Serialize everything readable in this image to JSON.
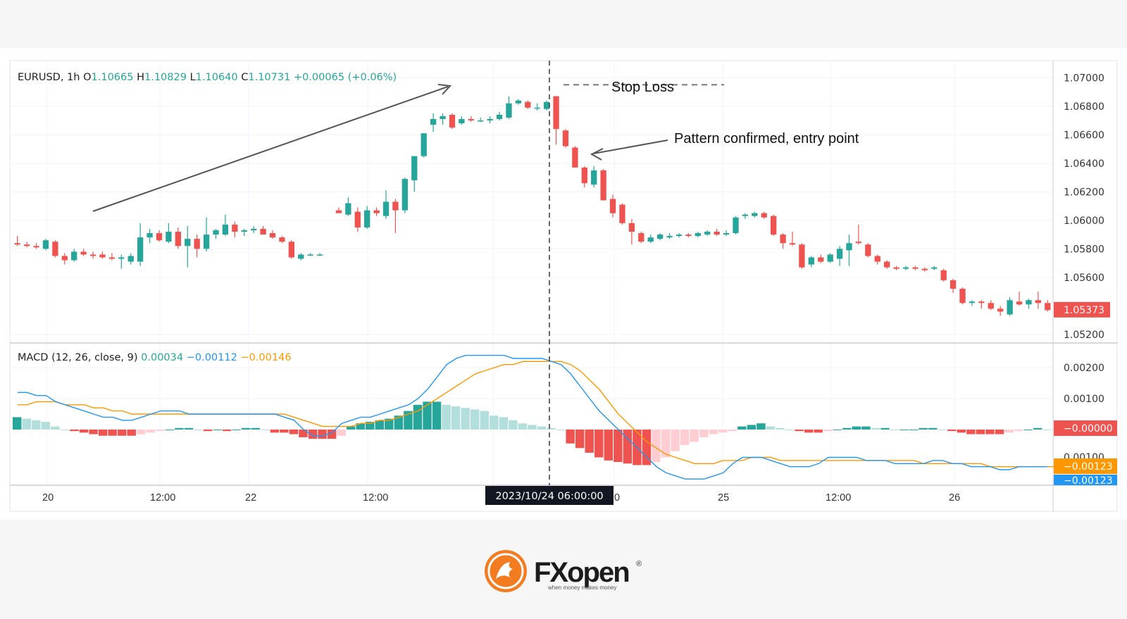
{
  "chart_data": {
    "type": "candlestick",
    "symbol": "EURUSD",
    "interval": "1h",
    "ohlc_header": {
      "open_label": "O",
      "open": "1.10665",
      "high_label": "H",
      "high": "1.10829",
      "low_label": "L",
      "low": "1.10640",
      "close_label": "C",
      "close": "1.10731",
      "change": "+0.00065 (+0.06%)"
    },
    "price_axis": {
      "ticks": [
        "1.07000",
        "1.06800",
        "1.06600",
        "1.06400",
        "1.06200",
        "1.06000",
        "1.05800",
        "1.05600",
        "1.05200"
      ],
      "tick_values": [
        1.07,
        1.068,
        1.066,
        1.064,
        1.062,
        1.06,
        1.058,
        1.056,
        1.052
      ],
      "ylim": [
        1.0514,
        1.0712
      ],
      "last_price_label": "1.05373",
      "last_price": 1.05373
    },
    "time_axis": {
      "ticks": [
        "20",
        "12:00",
        "22",
        "12:00",
        "0",
        "25",
        "12:00",
        "26"
      ],
      "crosshair_label": "2023/10/24 06:00:00"
    },
    "candles": [
      {
        "o": 1.0584,
        "h": 1.0589,
        "l": 1.0582,
        "c": 1.0583
      },
      {
        "o": 1.0583,
        "h": 1.0585,
        "l": 1.0581,
        "c": 1.0582
      },
      {
        "o": 1.0582,
        "h": 1.0584,
        "l": 1.058,
        "c": 1.0581
      },
      {
        "o": 1.058,
        "h": 1.0587,
        "l": 1.0579,
        "c": 1.0586
      },
      {
        "o": 1.0585,
        "h": 1.0586,
        "l": 1.0574,
        "c": 1.0575
      },
      {
        "o": 1.0575,
        "h": 1.0577,
        "l": 1.0569,
        "c": 1.0572
      },
      {
        "o": 1.0572,
        "h": 1.058,
        "l": 1.0571,
        "c": 1.0578
      },
      {
        "o": 1.0578,
        "h": 1.058,
        "l": 1.0575,
        "c": 1.0576
      },
      {
        "o": 1.0576,
        "h": 1.0578,
        "l": 1.0573,
        "c": 1.0575
      },
      {
        "o": 1.0576,
        "h": 1.0578,
        "l": 1.0573,
        "c": 1.0574
      },
      {
        "o": 1.0574,
        "h": 1.0577,
        "l": 1.0572,
        "c": 1.0573
      },
      {
        "o": 1.0573,
        "h": 1.0576,
        "l": 1.0566,
        "c": 1.0574
      },
      {
        "o": 1.0571,
        "h": 1.0577,
        "l": 1.0569,
        "c": 1.0575
      },
      {
        "o": 1.0571,
        "h": 1.0598,
        "l": 1.0568,
        "c": 1.0588
      },
      {
        "o": 1.0588,
        "h": 1.0594,
        "l": 1.0584,
        "c": 1.0591
      },
      {
        "o": 1.0591,
        "h": 1.0593,
        "l": 1.0585,
        "c": 1.0586
      },
      {
        "o": 1.0585,
        "h": 1.0598,
        "l": 1.0584,
        "c": 1.0592
      },
      {
        "o": 1.0592,
        "h": 1.0595,
        "l": 1.058,
        "c": 1.0582
      },
      {
        "o": 1.0582,
        "h": 1.0596,
        "l": 1.0567,
        "c": 1.0587
      },
      {
        "o": 1.0587,
        "h": 1.059,
        "l": 1.0574,
        "c": 1.058
      },
      {
        "o": 1.058,
        "h": 1.0602,
        "l": 1.0578,
        "c": 1.059
      },
      {
        "o": 1.059,
        "h": 1.0594,
        "l": 1.0587,
        "c": 1.0593
      },
      {
        "o": 1.059,
        "h": 1.0604,
        "l": 1.0589,
        "c": 1.0597
      },
      {
        "o": 1.0597,
        "h": 1.0599,
        "l": 1.0588,
        "c": 1.0592
      },
      {
        "o": 1.0592,
        "h": 1.0594,
        "l": 1.0589,
        "c": 1.0593
      },
      {
        "o": 1.0593,
        "h": 1.0596,
        "l": 1.0591,
        "c": 1.0594
      },
      {
        "o": 1.0594,
        "h": 1.0596,
        "l": 1.059,
        "c": 1.059
      },
      {
        "o": 1.0591,
        "h": 1.0593,
        "l": 1.0587,
        "c": 1.0588
      },
      {
        "o": 1.0588,
        "h": 1.0589,
        "l": 1.0584,
        "c": 1.0585
      },
      {
        "o": 1.0585,
        "h": 1.0586,
        "l": 1.0573,
        "c": 1.0574
      },
      {
        "o": 1.0573,
        "h": 1.0577,
        "l": 1.0572,
        "c": 1.0576
      },
      {
        "o": 1.0576,
        "h": 1.0577,
        "l": 1.0575,
        "c": 1.0576
      },
      {
        "o": 1.0576,
        "h": 1.0577,
        "l": 1.0575,
        "c": 1.0576
      },
      null,
      {
        "o": 1.0607,
        "h": 1.0609,
        "l": 1.0605,
        "c": 1.0605
      },
      {
        "o": 1.0604,
        "h": 1.0616,
        "l": 1.0603,
        "c": 1.0612
      },
      {
        "o": 1.0606,
        "h": 1.0609,
        "l": 1.0592,
        "c": 1.0595
      },
      {
        "o": 1.0595,
        "h": 1.061,
        "l": 1.0594,
        "c": 1.0607
      },
      {
        "o": 1.0607,
        "h": 1.0609,
        "l": 1.0603,
        "c": 1.0605
      },
      {
        "o": 1.0603,
        "h": 1.0621,
        "l": 1.0601,
        "c": 1.0613
      },
      {
        "o": 1.0613,
        "h": 1.0615,
        "l": 1.0591,
        "c": 1.0607
      },
      {
        "o": 1.0607,
        "h": 1.063,
        "l": 1.0605,
        "c": 1.0629
      },
      {
        "o": 1.0628,
        "h": 1.0645,
        "l": 1.062,
        "c": 1.0645
      },
      {
        "o": 1.0645,
        "h": 1.0661,
        "l": 1.0644,
        "c": 1.0661
      },
      {
        "o": 1.0667,
        "h": 1.0675,
        "l": 1.0662,
        "c": 1.0671
      },
      {
        "o": 1.0671,
        "h": 1.0675,
        "l": 1.0667,
        "c": 1.0673
      },
      {
        "o": 1.0674,
        "h": 1.0675,
        "l": 1.0664,
        "c": 1.0665
      },
      {
        "o": 1.0668,
        "h": 1.0673,
        "l": 1.0667,
        "c": 1.0671
      },
      {
        "o": 1.0671,
        "h": 1.0673,
        "l": 1.0669,
        "c": 1.067
      },
      {
        "o": 1.067,
        "h": 1.0672,
        "l": 1.0669,
        "c": 1.067
      },
      {
        "o": 1.067,
        "h": 1.0673,
        "l": 1.0668,
        "c": 1.0671
      },
      {
        "o": 1.0671,
        "h": 1.0676,
        "l": 1.067,
        "c": 1.0674
      },
      {
        "o": 1.0672,
        "h": 1.0687,
        "l": 1.0671,
        "c": 1.0682
      },
      {
        "o": 1.0682,
        "h": 1.0685,
        "l": 1.0681,
        "c": 1.0684
      },
      {
        "o": 1.0683,
        "h": 1.0684,
        "l": 1.0678,
        "c": 1.0679
      },
      {
        "o": 1.0679,
        "h": 1.0682,
        "l": 1.0677,
        "c": 1.0679
      },
      {
        "o": 1.0678,
        "h": 1.0684,
        "l": 1.0677,
        "c": 1.0683
      },
      {
        "o": 1.0687,
        "h": 1.0687,
        "l": 1.0653,
        "c": 1.0664
      },
      {
        "o": 1.0663,
        "h": 1.0664,
        "l": 1.0651,
        "c": 1.0652
      },
      {
        "o": 1.0651,
        "h": 1.0652,
        "l": 1.0637,
        "c": 1.0637
      },
      {
        "o": 1.0637,
        "h": 1.0638,
        "l": 1.0623,
        "c": 1.0626
      },
      {
        "o": 1.0625,
        "h": 1.0638,
        "l": 1.0623,
        "c": 1.0635
      },
      {
        "o": 1.0635,
        "h": 1.0636,
        "l": 1.0614,
        "c": 1.0614
      },
      {
        "o": 1.0615,
        "h": 1.0618,
        "l": 1.0602,
        "c": 1.0605
      },
      {
        "o": 1.0611,
        "h": 1.0612,
        "l": 1.0597,
        "c": 1.0598
      },
      {
        "o": 1.0598,
        "h": 1.0601,
        "l": 1.0583,
        "c": 1.0592
      },
      {
        "o": 1.0591,
        "h": 1.0592,
        "l": 1.0584,
        "c": 1.0585
      },
      {
        "o": 1.0585,
        "h": 1.059,
        "l": 1.0584,
        "c": 1.0588
      },
      {
        "o": 1.0587,
        "h": 1.0591,
        "l": 1.0586,
        "c": 1.059
      },
      {
        "o": 1.0588,
        "h": 1.0591,
        "l": 1.0587,
        "c": 1.0589
      },
      {
        "o": 1.0589,
        "h": 1.0591,
        "l": 1.0588,
        "c": 1.059
      },
      {
        "o": 1.059,
        "h": 1.0591,
        "l": 1.0588,
        "c": 1.0589
      },
      {
        "o": 1.0589,
        "h": 1.0592,
        "l": 1.0588,
        "c": 1.0591
      },
      {
        "o": 1.059,
        "h": 1.0593,
        "l": 1.0589,
        "c": 1.0592
      },
      {
        "o": 1.0592,
        "h": 1.0594,
        "l": 1.0589,
        "c": 1.059
      },
      {
        "o": 1.059,
        "h": 1.0593,
        "l": 1.0589,
        "c": 1.0591
      },
      {
        "o": 1.0591,
        "h": 1.0603,
        "l": 1.059,
        "c": 1.0602
      },
      {
        "o": 1.0603,
        "h": 1.0605,
        "l": 1.0601,
        "c": 1.0604
      },
      {
        "o": 1.0603,
        "h": 1.0606,
        "l": 1.0602,
        "c": 1.0605
      },
      {
        "o": 1.0605,
        "h": 1.0606,
        "l": 1.0601,
        "c": 1.0602
      },
      {
        "o": 1.0603,
        "h": 1.0604,
        "l": 1.0589,
        "c": 1.059
      },
      {
        "o": 1.059,
        "h": 1.0591,
        "l": 1.058,
        "c": 1.0584
      },
      {
        "o": 1.0584,
        "h": 1.0592,
        "l": 1.0582,
        "c": 1.0583
      },
      {
        "o": 1.0583,
        "h": 1.0584,
        "l": 1.0566,
        "c": 1.0567
      },
      {
        "o": 1.0569,
        "h": 1.0575,
        "l": 1.0567,
        "c": 1.0574
      },
      {
        "o": 1.0574,
        "h": 1.0576,
        "l": 1.057,
        "c": 1.0571
      },
      {
        "o": 1.0571,
        "h": 1.0577,
        "l": 1.057,
        "c": 1.0576
      },
      {
        "o": 1.0573,
        "h": 1.0582,
        "l": 1.0568,
        "c": 1.058
      },
      {
        "o": 1.0579,
        "h": 1.059,
        "l": 1.0568,
        "c": 1.0584
      },
      {
        "o": 1.0585,
        "h": 1.0597,
        "l": 1.0583,
        "c": 1.0584
      },
      {
        "o": 1.0583,
        "h": 1.0584,
        "l": 1.0574,
        "c": 1.0575
      },
      {
        "o": 1.0575,
        "h": 1.0576,
        "l": 1.0569,
        "c": 1.0571
      },
      {
        "o": 1.0571,
        "h": 1.0572,
        "l": 1.0566,
        "c": 1.0567
      },
      {
        "o": 1.0567,
        "h": 1.0568,
        "l": 1.0565,
        "c": 1.0566
      },
      {
        "o": 1.0566,
        "h": 1.0568,
        "l": 1.0565,
        "c": 1.0567
      },
      {
        "o": 1.0567,
        "h": 1.0568,
        "l": 1.0565,
        "c": 1.0566
      },
      {
        "o": 1.0566,
        "h": 1.0567,
        "l": 1.0564,
        "c": 1.0565
      },
      {
        "o": 1.0566,
        "h": 1.0568,
        "l": 1.0565,
        "c": 1.0567
      },
      {
        "o": 1.0565,
        "h": 1.0566,
        "l": 1.0557,
        "c": 1.0558
      },
      {
        "o": 1.0558,
        "h": 1.0559,
        "l": 1.0549,
        "c": 1.0552
      },
      {
        "o": 1.0552,
        "h": 1.0553,
        "l": 1.0541,
        "c": 1.0542
      },
      {
        "o": 1.0542,
        "h": 1.0544,
        "l": 1.054,
        "c": 1.0543
      },
      {
        "o": 1.0543,
        "h": 1.0544,
        "l": 1.0538,
        "c": 1.0542
      },
      {
        "o": 1.0542,
        "h": 1.0544,
        "l": 1.0537,
        "c": 1.0538
      },
      {
        "o": 1.0538,
        "h": 1.054,
        "l": 1.0533,
        "c": 1.0536
      },
      {
        "o": 1.0534,
        "h": 1.0546,
        "l": 1.0533,
        "c": 1.0544
      },
      {
        "o": 1.0543,
        "h": 1.055,
        "l": 1.054,
        "c": 1.0541
      },
      {
        "o": 1.0541,
        "h": 1.0545,
        "l": 1.0538,
        "c": 1.0544
      },
      {
        "o": 1.0544,
        "h": 1.055,
        "l": 1.0538,
        "c": 1.0542
      },
      {
        "o": 1.0542,
        "h": 1.0544,
        "l": 1.0536,
        "c": 1.0537
      }
    ],
    "macd": {
      "label": "MACD (12, 26, close, 9)",
      "histogram_value": "0.00034",
      "macd_value": "−0.00112",
      "signal_value": "−0.00146",
      "axis_ticks": [
        "0.00200",
        "0.00100"
      ],
      "axis_tick_values": [
        0.002,
        0.001
      ],
      "partial_tick": "0.00100",
      "ylim": [
        -0.0018,
        0.0028
      ],
      "labels": {
        "histogram": "−0.00000",
        "signal": "−0.00123",
        "macd": "−0.00123"
      },
      "histogram": [
        0.0004,
        0.00035,
        0.0003,
        0.00025,
        0.0001,
        0.0,
        -5e-05,
        -0.0001,
        -0.00015,
        -0.0002,
        -0.0002,
        -0.0002,
        -0.0002,
        -0.00015,
        -0.0001,
        -5e-05,
        0.0,
        5e-05,
        5e-05,
        0.0,
        -5e-05,
        0.0,
        -5e-05,
        0.0,
        5e-05,
        5e-05,
        0.0,
        -0.0001,
        -0.0001,
        -0.00015,
        -0.00025,
        -0.0003,
        -0.0003,
        -0.0003,
        -0.0002,
        0.0001,
        0.0002,
        0.00025,
        0.0003,
        0.00035,
        0.00045,
        0.0006,
        0.0008,
        0.0009,
        0.0009,
        0.0008,
        0.00075,
        0.0007,
        0.00065,
        0.0006,
        0.00045,
        0.0004,
        0.0003,
        0.0002,
        0.00015,
        0.0001,
        5e-05,
        0.0,
        -0.00045,
        -0.0006,
        -0.00075,
        -0.0009,
        -0.001,
        -0.00105,
        -0.0011,
        -0.00115,
        -0.00115,
        -0.00105,
        -0.0009,
        -0.0007,
        -0.0005,
        -0.0004,
        -0.00025,
        -0.00015,
        -0.0001,
        -5e-05,
        0.0001,
        0.00015,
        0.0002,
        0.0001,
        5e-05,
        0.0,
        -5e-05,
        -0.0001,
        -0.0001,
        -5e-05,
        0.0,
        5e-05,
        0.0001,
        0.0001,
        5e-05,
        5e-05,
        0.0,
        0.0,
        0.0,
        5e-05,
        5e-05,
        0.0,
        -5e-05,
        -0.0001,
        -0.00015,
        -0.00015,
        -0.00015,
        -0.00015,
        -0.0001,
        -5e-05,
        0.0,
        5e-05,
        0.0
      ],
      "macd_line": [
        0.0012,
        0.0012,
        0.0011,
        0.0011,
        0.0009,
        0.0008,
        0.0007,
        0.0006,
        0.0005,
        0.0004,
        0.0004,
        0.0003,
        0.0003,
        0.0004,
        0.0005,
        0.0006,
        0.0006,
        0.0006,
        0.0005,
        0.0005,
        0.0005,
        0.0005,
        0.0005,
        0.0005,
        0.0005,
        0.0005,
        0.0005,
        0.0005,
        0.0004,
        0.0003,
        0.0,
        -0.0002,
        -0.0002,
        -0.0001,
        0.0002,
        0.0003,
        0.0004,
        0.0004,
        0.0005,
        0.0006,
        0.0007,
        0.0008,
        0.001,
        0.0013,
        0.0017,
        0.0021,
        0.0023,
        0.0024,
        0.0024,
        0.0024,
        0.0024,
        0.0024,
        0.0023,
        0.0023,
        0.0023,
        0.0023,
        0.0022,
        0.0021,
        0.0018,
        0.0014,
        0.001,
        0.0006,
        0.0003,
        0.0,
        -0.0003,
        -0.0006,
        -0.0009,
        -0.0012,
        -0.0014,
        -0.0015,
        -0.0016,
        -0.0016,
        -0.0016,
        -0.0015,
        -0.0014,
        -0.0011,
        -0.0009,
        -0.0009,
        -0.0009,
        -0.001,
        -0.0011,
        -0.0012,
        -0.0012,
        -0.0012,
        -0.0011,
        -0.0009,
        -0.0009,
        -0.0009,
        -0.0009,
        -0.001,
        -0.001,
        -0.001,
        -0.0011,
        -0.0011,
        -0.0011,
        -0.0011,
        -0.001,
        -0.001,
        -0.0011,
        -0.0011,
        -0.0012,
        -0.0012,
        -0.0012,
        -0.0013,
        -0.0013,
        -0.0012,
        -0.0012,
        -0.0012,
        -0.0012
      ],
      "signal_line": [
        0.0008,
        0.0008,
        0.0009,
        0.0009,
        0.0009,
        0.0008,
        0.0008,
        0.0008,
        0.0007,
        0.0007,
        0.0006,
        0.0006,
        0.0005,
        0.0005,
        0.0005,
        0.0005,
        0.0005,
        0.0005,
        0.0005,
        0.0005,
        0.0005,
        0.0005,
        0.0005,
        0.0005,
        0.0005,
        0.0005,
        0.0005,
        0.0005,
        0.0005,
        0.0004,
        0.0003,
        0.0002,
        0.0001,
        0.0001,
        0.0001,
        0.0001,
        0.0002,
        0.0002,
        0.0003,
        0.0003,
        0.0004,
        0.0005,
        0.0006,
        0.0008,
        0.001,
        0.0012,
        0.0014,
        0.0016,
        0.0018,
        0.0019,
        0.002,
        0.0021,
        0.0021,
        0.0022,
        0.0022,
        0.0022,
        0.0022,
        0.0022,
        0.0021,
        0.0019,
        0.0016,
        0.0013,
        0.0009,
        0.0005,
        0.0002,
        -0.0001,
        -0.0004,
        -0.0006,
        -0.0008,
        -0.0009,
        -0.001,
        -0.0011,
        -0.0011,
        -0.0011,
        -0.001,
        -0.001,
        -0.001,
        -0.0009,
        -0.0009,
        -0.0009,
        -0.001,
        -0.001,
        -0.001,
        -0.001,
        -0.001,
        -0.001,
        -0.001,
        -0.001,
        -0.001,
        -0.001,
        -0.001,
        -0.001,
        -0.001,
        -0.001,
        -0.001,
        -0.0011,
        -0.0011,
        -0.0011,
        -0.0011,
        -0.0011,
        -0.0011,
        -0.0011,
        -0.0012,
        -0.0012,
        -0.0012,
        -0.0012,
        -0.0012,
        -0.0012,
        -0.0012,
        -0.0012
      ]
    },
    "annotations": {
      "stop_loss": "Stop Loss",
      "stop_loss_price": 1.0695,
      "entry": "Pattern confirmed, entry point"
    },
    "colors": {
      "up": "#26a69a",
      "down": "#ef5350",
      "macd": "#2196f3",
      "signal": "#ff9800",
      "hist_up_light": "#b2dfdb",
      "hist_down_light": "#ffcdd2"
    }
  },
  "logo": {
    "brand": "FXopen",
    "tagline": "when money makes money",
    "registered": "®"
  }
}
